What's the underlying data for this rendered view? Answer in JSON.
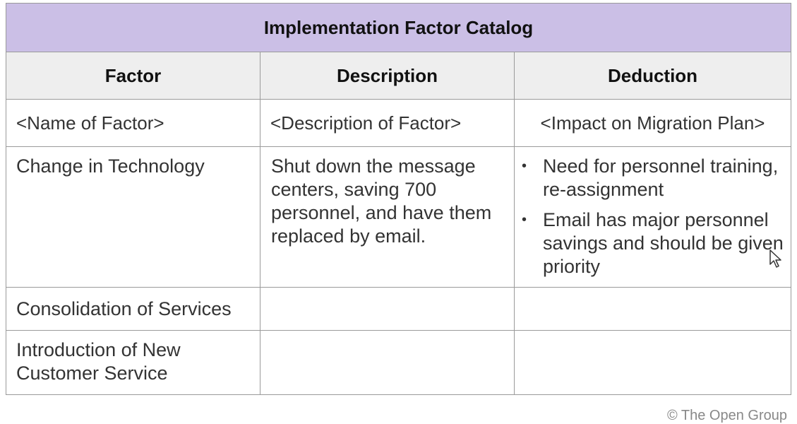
{
  "table": {
    "title": "Implementation Factor Catalog",
    "headers": [
      "Factor",
      "Description",
      "Deduction"
    ],
    "rows": [
      {
        "factor": "<Name of Factor>",
        "description": "<Description of Factor>",
        "deduction": "<Impact on Migration Plan>"
      },
      {
        "factor": "Change in Technology",
        "description": "Shut down the message centers, saving 700 personnel, and have them replaced by email.",
        "deduction_bullets": [
          "Need for personnel training, re-assignment",
          "Email has major personnel savings and should be given priority"
        ]
      },
      {
        "factor": "Consolidation of Services",
        "description": "",
        "deduction": ""
      },
      {
        "factor": "Introduction of New Customer Service",
        "description": "",
        "deduction": ""
      }
    ]
  },
  "footer": {
    "copyright": "© The Open Group"
  },
  "colors": {
    "title_bg": "#cbbfe6",
    "header_bg": "#eeeeee",
    "border": "#9a9a9a"
  },
  "icons": {
    "bullet": "•",
    "cursor": "mouse-pointer-icon"
  }
}
